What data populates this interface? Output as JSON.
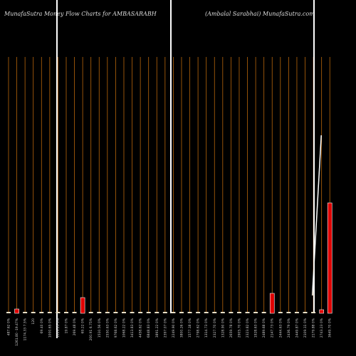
{
  "chart_data": {
    "type": "bar",
    "title": "MunafaSutra  Money Flow  Charts for AMBASARABH",
    "subtitle": "(Ambalal Sarabhai) MunafaSutra.com",
    "categories": [
      "487.62 0%",
      "1261.80 -19.47%",
      "1174.33 7.5%",
      "120",
      "69.40 0%",
      "1000.65 0%",
      "1023.25 0%",
      "19.87 0%",
      "269.48 0%",
      "69.22 0%",
      "200.91 6.75%",
      "1510.56 0%",
      "2550.63 0%",
      "9768.62 0%",
      "1068.22 0%",
      "3413.83 0%",
      "4458.62 0%",
      "6848.83 0%",
      "3891.22 0%",
      "2397.07 0%",
      "2249.90 0%",
      "3800.26 0%",
      "1577.18 0%",
      "2798.62 0%",
      "1314.73 0%",
      "2327.70 0%",
      "1328.90 0%",
      "2659.78 0%",
      "2905.70 0%",
      "2323.82 0%",
      "1928.63 0%",
      "2489.68 0%",
      "2147.73 0%",
      "2444.63 0%",
      "2436.79 0%",
      "2449.87 0%",
      "2109.11 0%",
      "2179.88 0%",
      "2743.23 0%",
      "3649.70 0%"
    ],
    "values": [
      2,
      6,
      2,
      2,
      2,
      2,
      2,
      2,
      2,
      22,
      2,
      2,
      2,
      2,
      2,
      2,
      2,
      2,
      2,
      2,
      2,
      2,
      2,
      2,
      2,
      2,
      2,
      2,
      2,
      2,
      2,
      2,
      28,
      2,
      2,
      2,
      2,
      2,
      5,
      155
    ],
    "colors": [
      "#e8e0c8",
      "#e00000",
      "#e8e0c8",
      "#e8e0c8",
      "#e8e0c8",
      "#e8e0c8",
      "#e8e0c8",
      "#e8e0c8",
      "#e8e0c8",
      "#e00000",
      "#e8e0c8",
      "#e8e0c8",
      "#e8e0c8",
      "#e8e0c8",
      "#e8e0c8",
      "#e8e0c8",
      "#e8e0c8",
      "#e8e0c8",
      "#e8e0c8",
      "#e8e0c8",
      "#e8e0c8",
      "#e8e0c8",
      "#e8e0c8",
      "#e8e0c8",
      "#e8e0c8",
      "#e8e0c8",
      "#e8e0c8",
      "#e8e0c8",
      "#e8e0c8",
      "#e8e0c8",
      "#e8e0c8",
      "#e8e0c8",
      "#e00000",
      "#e8e0c8",
      "#e8e0c8",
      "#e8e0c8",
      "#e8e0c8",
      "#e8e0c8",
      "#e00000",
      "#e00000"
    ],
    "line": {
      "color": "#ffffff",
      "values": [
        null,
        null,
        null,
        null,
        null,
        null,
        null,
        null,
        null,
        null,
        null,
        null,
        null,
        null,
        null,
        null,
        null,
        null,
        null,
        null,
        null,
        null,
        null,
        null,
        null,
        null,
        null,
        null,
        null,
        null,
        null,
        null,
        null,
        null,
        null,
        null,
        null,
        null,
        25,
        250
      ]
    },
    "ylim": [
      0,
      400
    ],
    "grid_color": "#b8660b"
  }
}
